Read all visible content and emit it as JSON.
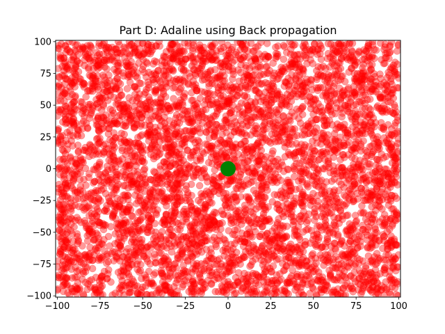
{
  "chart_data": {
    "type": "scatter",
    "title": "Part D: Adaline using Back propagation",
    "xlabel": "",
    "ylabel": "",
    "xlim": [
      -101,
      101
    ],
    "ylim": [
      -101,
      101
    ],
    "xticks": [
      -100,
      -75,
      -50,
      -25,
      0,
      25,
      50,
      75,
      100
    ],
    "yticks": [
      -100,
      -75,
      -50,
      -25,
      0,
      25,
      50,
      75,
      100
    ],
    "xtick_labels": [
      "−100",
      "−75",
      "−50",
      "−25",
      "0",
      "25",
      "50",
      "75",
      "100"
    ],
    "ytick_labels": [
      "−100",
      "−75",
      "−50",
      "−25",
      "0",
      "25",
      "50",
      "75",
      "100"
    ],
    "grid": false,
    "series": [
      {
        "color": "#ff0000",
        "alpha": 0.4,
        "marker": "circle",
        "distribution": "uniform random",
        "x_range": [
          -100,
          100
        ],
        "y_range": [
          -100,
          100
        ],
        "approx_count": 5000
      },
      {
        "color": "#008000",
        "marker": "circle",
        "points": [
          [
            0,
            0
          ]
        ]
      }
    ]
  }
}
